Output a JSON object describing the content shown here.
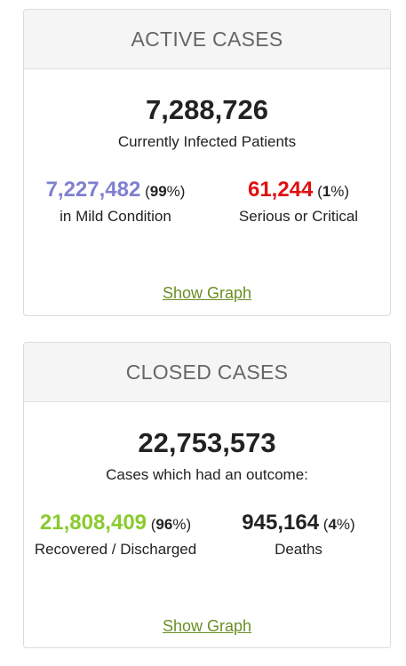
{
  "active": {
    "header": "ACTIVE CASES",
    "total": "7,288,726",
    "total_caption": "Currently Infected Patients",
    "mild": {
      "value": "7,227,482",
      "pct_open": " (",
      "pct": "99",
      "pct_close": "%)",
      "label": "in Mild Condition",
      "color": "#8080d0"
    },
    "serious": {
      "value": "61,244",
      "pct_open": " (",
      "pct": "1",
      "pct_close": "%)",
      "label": "Serious or Critical",
      "color": "#e01010"
    },
    "graph_link": "Show Graph"
  },
  "closed": {
    "header": "CLOSED CASES",
    "total": "22,753,573",
    "total_caption": "Cases which had an outcome:",
    "recovered": {
      "value": "21,808,409",
      "pct_open": " (",
      "pct": "96",
      "pct_close": "%)",
      "label": "Recovered / Discharged",
      "color": "#8acb2f"
    },
    "deaths": {
      "value": "945,164",
      "pct_open": " (",
      "pct": "4",
      "pct_close": "%)",
      "label": "Deaths",
      "color": "#222222"
    },
    "graph_link": "Show Graph"
  }
}
